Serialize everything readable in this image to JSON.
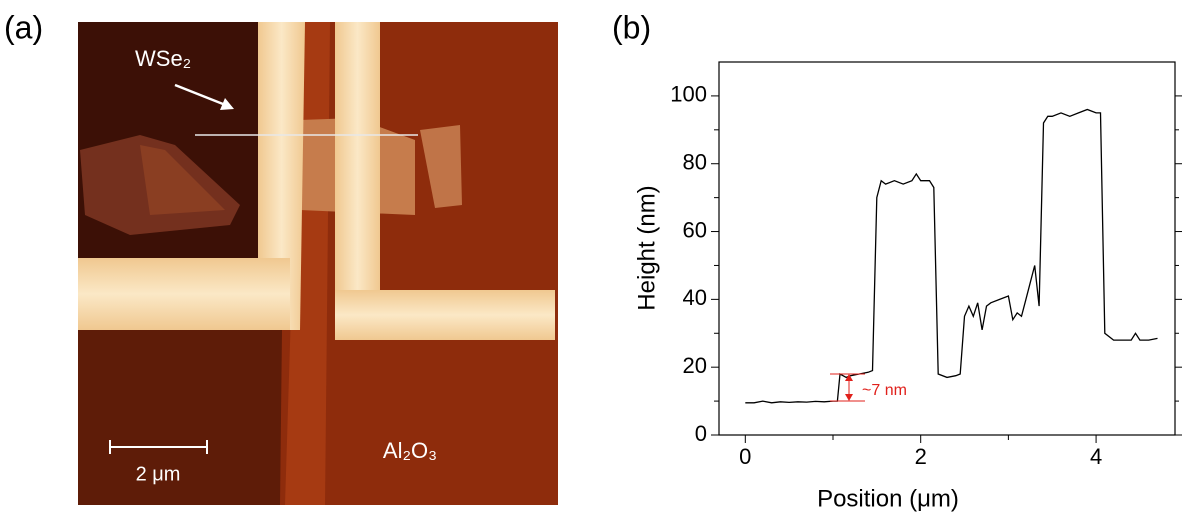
{
  "panel_a": {
    "label": "(a)",
    "flake_label": "WSe₂",
    "scale_label": "2 μm",
    "substrate_label": "Al₂O₃"
  },
  "chart_data": {
    "type": "line",
    "panel_label": "(b)",
    "x_label": "Position (μm)",
    "y_label": "Height (nm)",
    "annotation": "~7 nm",
    "annotation_color": "#e0201b",
    "color": "#000000",
    "xlim": [
      -0.3,
      4.9
    ],
    "ylim": [
      0,
      110
    ],
    "xticks": [
      0,
      2,
      4
    ],
    "yticks": [
      0,
      20,
      40,
      60,
      80,
      100
    ],
    "xminorticks": [
      1,
      3
    ],
    "yminorticks": [
      10,
      30,
      50,
      70,
      90
    ],
    "x": [
      0,
      0.1,
      0.2,
      0.3,
      0.4,
      0.5,
      0.6,
      0.7,
      0.8,
      0.9,
      1.0,
      1.05,
      1.08,
      1.15,
      1.2,
      1.3,
      1.4,
      1.45,
      1.5,
      1.55,
      1.6,
      1.7,
      1.8,
      1.9,
      1.95,
      2.0,
      2.1,
      2.15,
      2.2,
      2.3,
      2.4,
      2.45,
      2.5,
      2.55,
      2.6,
      2.65,
      2.7,
      2.75,
      2.8,
      2.9,
      3.0,
      3.05,
      3.1,
      3.15,
      3.2,
      3.25,
      3.3,
      3.35,
      3.4,
      3.45,
      3.5,
      3.6,
      3.7,
      3.8,
      3.9,
      4.0,
      4.05,
      4.1,
      4.2,
      4.3,
      4.4,
      4.45,
      4.5,
      4.6,
      4.7
    ],
    "values": [
      9.5,
      9.5,
      10,
      9.5,
      9.8,
      9.6,
      9.8,
      9.7,
      9.9,
      9.8,
      10,
      10,
      18,
      17,
      17.5,
      18,
      18.5,
      19,
      70,
      75,
      74,
      75,
      74,
      75,
      77,
      75,
      75,
      73,
      18,
      17,
      17.5,
      18,
      35,
      38,
      35,
      39,
      31,
      38,
      39,
      40,
      41,
      34,
      36,
      35,
      40,
      45,
      50,
      38,
      92,
      94,
      94,
      95,
      94,
      95,
      96,
      95,
      95,
      30,
      28,
      28,
      28,
      30,
      28,
      28,
      28.5
    ]
  }
}
